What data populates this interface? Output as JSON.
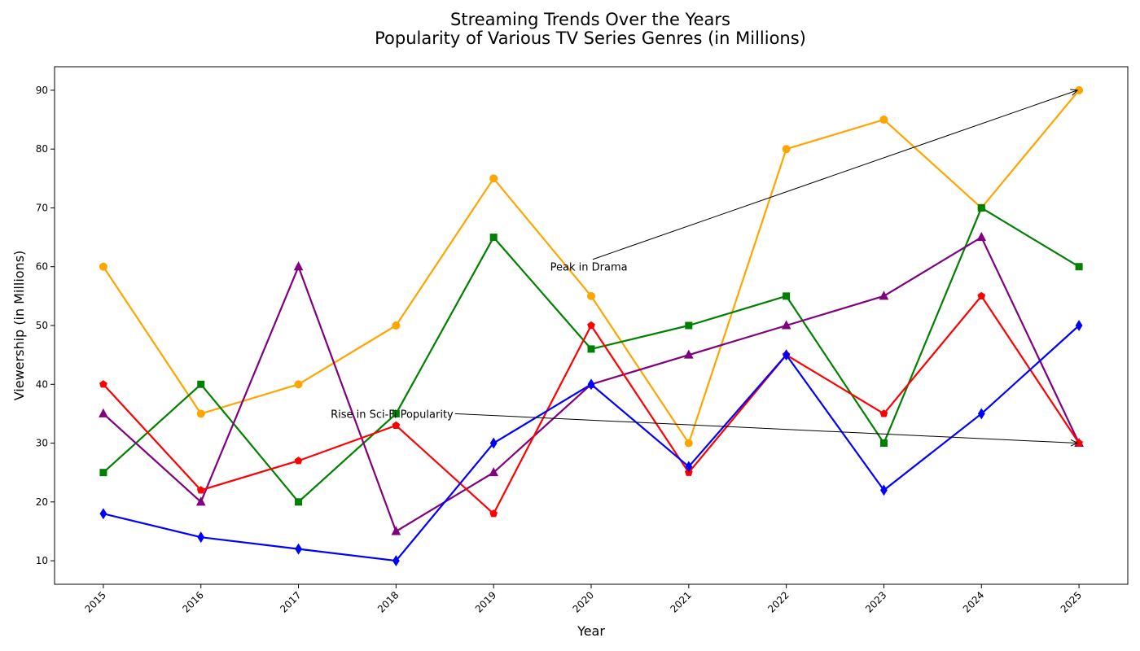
{
  "chart_data": {
    "type": "line",
    "title_line1": "Streaming Trends Over the Years",
    "title_line2": "Popularity of Various TV Series Genres (in Millions)",
    "xlabel": "Year",
    "ylabel": "Viewership (in Millions)",
    "x": [
      2015,
      2016,
      2017,
      2018,
      2019,
      2020,
      2021,
      2022,
      2023,
      2024,
      2025
    ],
    "xlim": [
      2014.5,
      2025.5
    ],
    "ylim": [
      6,
      94
    ],
    "yticks": [
      10,
      20,
      30,
      40,
      50,
      60,
      70,
      80,
      90
    ],
    "grid": false,
    "series": [
      {
        "color": "#FFA500",
        "marker": "circle",
        "values": [
          60,
          35,
          40,
          50,
          75,
          55,
          30,
          80,
          85,
          70,
          90
        ]
      },
      {
        "color": "#008000",
        "marker": "square",
        "values": [
          25,
          40,
          20,
          35,
          65,
          46,
          50,
          55,
          30,
          70,
          60
        ]
      },
      {
        "color": "#800080",
        "marker": "triangle",
        "values": [
          35,
          20,
          60,
          15,
          25,
          40,
          45,
          50,
          55,
          65,
          30
        ]
      },
      {
        "color": "#FF0000",
        "marker": "pentagon",
        "values": [
          40,
          22,
          27,
          33,
          18,
          50,
          25,
          45,
          35,
          55,
          30
        ]
      },
      {
        "color": "#0000FF",
        "marker": "diamond",
        "values": [
          18,
          14,
          12,
          10,
          30,
          40,
          26,
          45,
          22,
          35,
          50
        ]
      }
    ],
    "annotations": [
      {
        "text": "Peak in Drama",
        "text_x": 2019.58,
        "text_y": 60,
        "point_x": 2025,
        "point_y": 90
      },
      {
        "text": "Rise in Sci-Fi Popularity",
        "text_x": 2017.33,
        "text_y": 35,
        "point_x": 2025,
        "point_y": 30
      }
    ]
  }
}
